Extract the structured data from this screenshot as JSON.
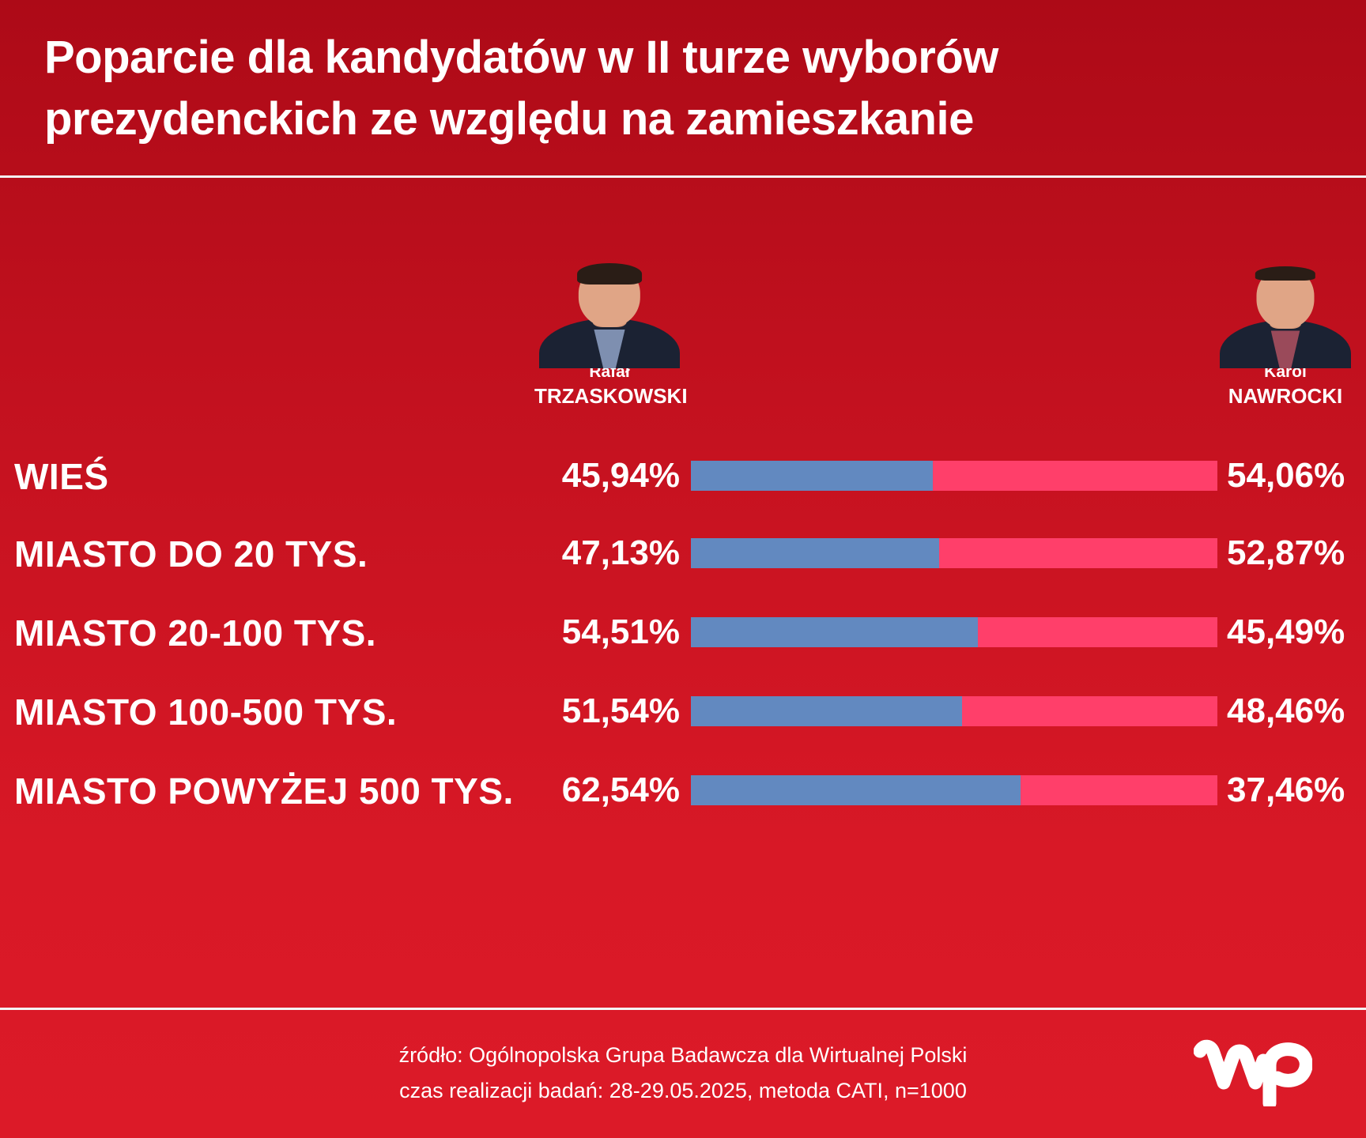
{
  "title_line1": "Poparcie dla kandydatów w II turze wyborów",
  "title_line2": "prezydenckich ze względu na zamieszkanie",
  "candidates": [
    {
      "first": "Rafał",
      "last": "TRZASKOWSKI"
    },
    {
      "first": "Karol",
      "last": "NAWROCKI"
    }
  ],
  "colors": {
    "trzaskowski": "#6289c0",
    "nawrocki": "#ff3f6a"
  },
  "chart_data": {
    "type": "bar",
    "stacked": true,
    "orientation": "horizontal",
    "categories": [
      "WIEŚ",
      "MIASTO DO 20 TYS.",
      "MIASTO 20-100 TYS.",
      "MIASTO 100-500 TYS.",
      "MIASTO POWYŻEJ 500 TYS."
    ],
    "series": [
      {
        "name": "Rafał TRZASKOWSKI",
        "values": [
          45.94,
          47.13,
          54.51,
          51.54,
          62.54
        ]
      },
      {
        "name": "Karol NAWROCKI",
        "values": [
          54.06,
          52.87,
          45.49,
          48.46,
          37.46
        ]
      }
    ],
    "labels_left": [
      "45,94%",
      "47,13%",
      "54,51%",
      "51,54%",
      "62,54%"
    ],
    "labels_right": [
      "54,06%",
      "52,87%",
      "45,49%",
      "48,46%",
      "37,46%"
    ],
    "xlim": [
      0,
      100
    ]
  },
  "footer": {
    "source": "źródło: Ogólnopolska Grupa Badawcza dla Wirtualnej Polski",
    "method": "czas realizacji badań: 28-29.05.2025, metoda CATI, n=1000"
  },
  "logo_icon": "wp-logo-icon"
}
